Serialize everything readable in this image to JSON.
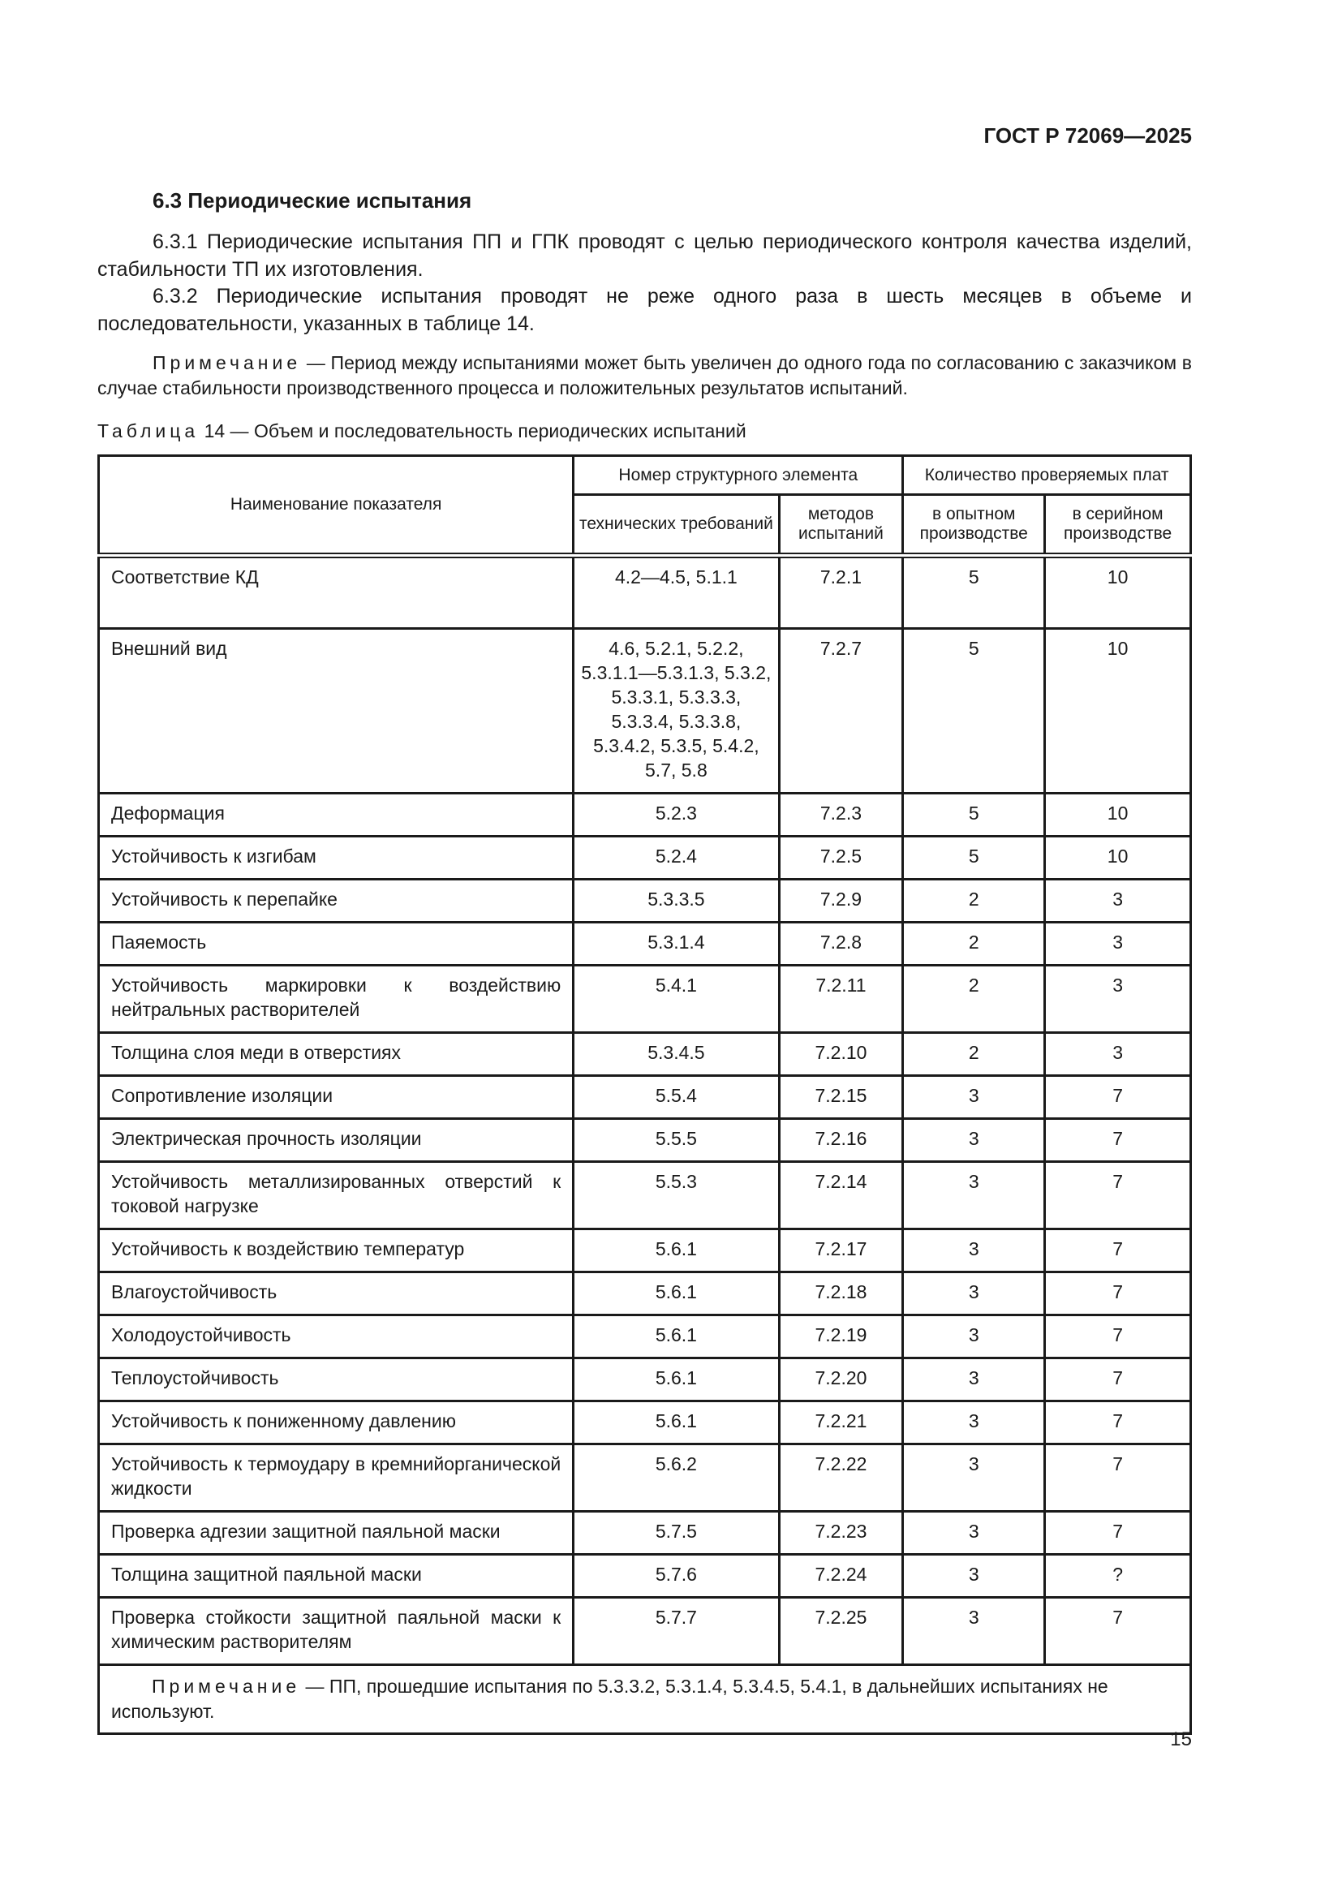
{
  "header": {
    "doc_code": "ГОСТ Р 72069—2025"
  },
  "section": {
    "title": "6.3 Периодические испытания",
    "paragraphs": [
      "6.3.1 Периодические испытания ПП и ГПК проводят с целью периодического контроля качества изделий, стабильности ТП их изготовления.",
      "6.3.2 Периодические испытания проводят не реже одного раза в шесть месяцев в объеме и последовательности, указанных в таблице 14."
    ],
    "note_label": "Примечание",
    "note_text": " — Период между испытаниями может быть увеличен до одного года по согласованию с заказчиком в случае стабильности производственного процесса и положительных результатов испытаний."
  },
  "table": {
    "caption_label": "Таблица",
    "caption_text": " 14 — Объем и последовательность периодических испытаний",
    "headers": {
      "name": "Наименование показателя",
      "group_number": "Номер структурного элемента",
      "group_count": "Количество проверяемых плат",
      "tech": "технических требований",
      "methods": "методов испытаний",
      "pilot": "в опытном производстве",
      "serial": "в серийном производстве"
    },
    "rows": [
      [
        "Соответствие КД",
        "4.2—4.5, 5.1.1",
        "7.2.1",
        "5",
        "10"
      ],
      [
        "Внешний вид",
        "4.6, 5.2.1, 5.2.2, 5.3.1.1—5.3.1.3, 5.3.2, 5.3.3.1, 5.3.3.3, 5.3.3.4, 5.3.3.8, 5.3.4.2, 5.3.5, 5.4.2, 5.7, 5.8",
        "7.2.7",
        "5",
        "10"
      ],
      [
        "Деформация",
        "5.2.3",
        "7.2.3",
        "5",
        "10"
      ],
      [
        "Устойчивость к изгибам",
        "5.2.4",
        "7.2.5",
        "5",
        "10"
      ],
      [
        "Устойчивость к перепайке",
        "5.3.3.5",
        "7.2.9",
        "2",
        "3"
      ],
      [
        "Паяемость",
        "5.3.1.4",
        "7.2.8",
        "2",
        "3"
      ],
      [
        "Устойчивость маркировки к воздействию нейтральных растворителей",
        "5.4.1",
        "7.2.11",
        "2",
        "3"
      ],
      [
        "Толщина слоя меди в отверстиях",
        "5.3.4.5",
        "7.2.10",
        "2",
        "3"
      ],
      [
        "Сопротивление изоляции",
        "5.5.4",
        "7.2.15",
        "3",
        "7"
      ],
      [
        "Электрическая прочность изоляции",
        "5.5.5",
        "7.2.16",
        "3",
        "7"
      ],
      [
        "Устойчивость металлизированных отверстий к токовой нагрузке",
        "5.5.3",
        "7.2.14",
        "3",
        "7"
      ],
      [
        "Устойчивость к воздействию температур",
        "5.6.1",
        "7.2.17",
        "3",
        "7"
      ],
      [
        "Влагоустойчивость",
        "5.6.1",
        "7.2.18",
        "3",
        "7"
      ],
      [
        "Холодоустойчивость",
        "5.6.1",
        "7.2.19",
        "3",
        "7"
      ],
      [
        "Теплоустойчивость",
        "5.6.1",
        "7.2.20",
        "3",
        "7"
      ],
      [
        "Устойчивость к пониженному давлению",
        "5.6.1",
        "7.2.21",
        "3",
        "7"
      ],
      [
        "Устойчивость к термоудару в кремнийорганической жидкости",
        "5.6.2",
        "7.2.22",
        "3",
        "7"
      ],
      [
        "Проверка адгезии защитной паяльной маски",
        "5.7.5",
        "7.2.23",
        "3",
        "7"
      ],
      [
        "Толщина защитной паяльной маски",
        "5.7.6",
        "7.2.24",
        "3",
        "?"
      ],
      [
        "Проверка стойкости защитной паяльной маски к химическим растворителям",
        "5.7.7",
        "7.2.25",
        "3",
        "7"
      ]
    ],
    "note_label": "Примечание",
    "note_text": " — ПП, прошедшие испытания по 5.3.3.2, 5.3.1.4, 5.3.4.5, 5.4.1, в дальнейших испытаниях не используют."
  },
  "footer": {
    "page_number": "15"
  }
}
